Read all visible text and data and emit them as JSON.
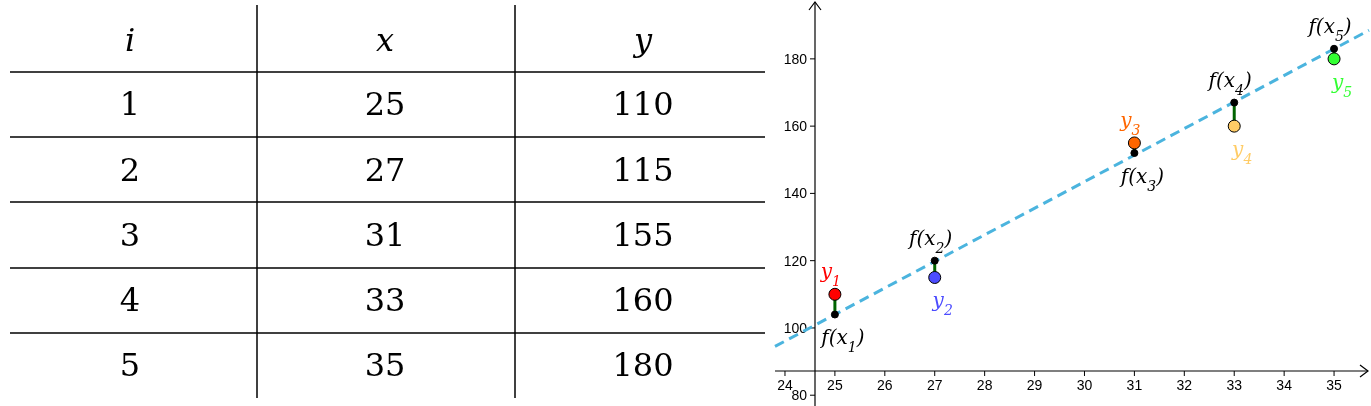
{
  "chart_data": {
    "type": "scatter",
    "grid": false,
    "xlim": [
      23.8,
      35.7
    ],
    "ylim": [
      77,
      197.5
    ],
    "xticks": [
      24,
      25,
      26,
      27,
      28,
      29,
      30,
      31,
      32,
      33,
      34,
      35
    ],
    "yticks": [
      80,
      100,
      120,
      140,
      160,
      180
    ],
    "series": [
      {
        "type": "line",
        "x": [
          23.8,
          35.7
        ],
        "values": [
          94.5,
          188.5
        ],
        "color": "#4bb4de",
        "line_style": "dashed"
      },
      {
        "x": [
          25,
          27,
          31,
          33,
          35
        ],
        "values": [
          104,
          120,
          152,
          167,
          183
        ],
        "color": "#000000",
        "marker": "circle"
      },
      {
        "x": [
          25,
          27,
          31,
          33,
          35
        ],
        "values": [
          110,
          115,
          155,
          160,
          180
        ],
        "colors": [
          "#ff0000",
          "#4c4cff",
          "#ff6600",
          "#ffcc66",
          "#33ff33"
        ],
        "marker": "circle"
      }
    ],
    "annotations": [
      "i",
      "x",
      "y",
      "1",
      "25",
      "110",
      "2",
      "27",
      "115",
      "3",
      "31",
      "155",
      "4",
      "33",
      "160",
      "5",
      "35",
      "180",
      {
        "text": "y$_{1}$",
        "x": 25,
        "y": 110
      },
      {
        "text": "y$_{2}$",
        "x": 27,
        "y": 115
      },
      {
        "text": "y$_{3}$",
        "x": 31,
        "y": 155
      },
      {
        "text": "y$_{4}$",
        "x": 33,
        "y": 160
      },
      {
        "text": "y$_{5}$",
        "x": 35,
        "y": 180
      },
      {
        "text": "f(x$_{1}$)",
        "x": 25,
        "y": 104
      },
      {
        "text": "f(x$_{2}$)",
        "x": 27,
        "y": 120
      },
      {
        "text": "f(x$_{3}$)",
        "x": 31,
        "y": 152
      },
      {
        "text": "f(x$_{4}$)",
        "x": 33,
        "y": 167
      },
      {
        "text": "f(x$_{5}$)",
        "x": 35,
        "y": 183
      }
    ]
  }
}
